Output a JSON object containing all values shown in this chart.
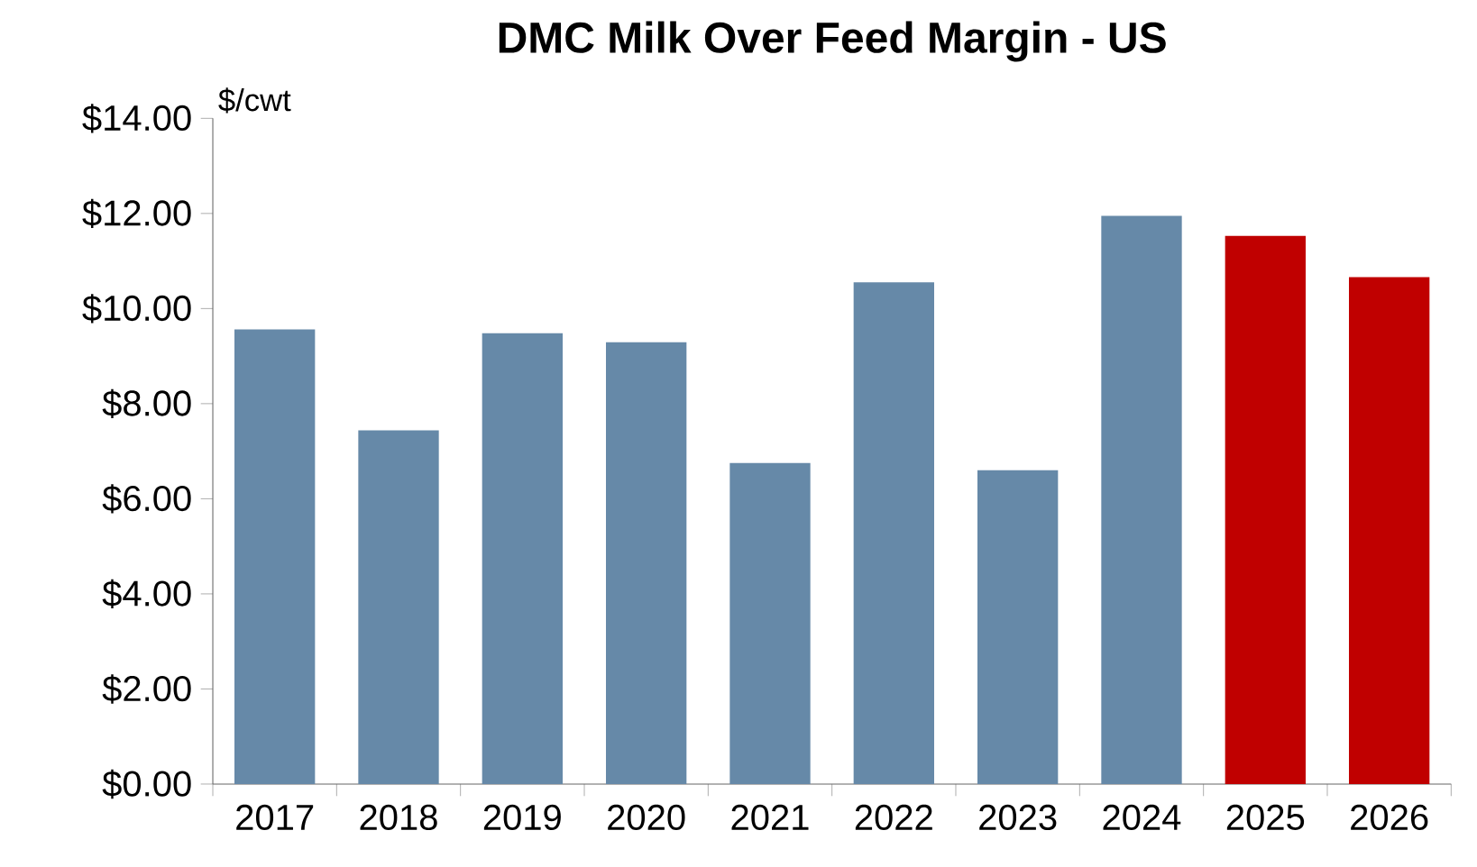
{
  "chart_data": {
    "type": "bar",
    "title": "DMC Milk Over Feed Margin - US",
    "ylabel": "$/cwt",
    "categories": [
      "2017",
      "2018",
      "2019",
      "2020",
      "2021",
      "2022",
      "2023",
      "2024",
      "2025",
      "2026"
    ],
    "values": [
      9.56,
      7.44,
      9.48,
      9.29,
      6.75,
      10.55,
      6.6,
      11.95,
      11.53,
      10.66
    ],
    "colors": [
      "#6689a8",
      "#6689a8",
      "#6689a8",
      "#6689a8",
      "#6689a8",
      "#6689a8",
      "#6689a8",
      "#6689a8",
      "#c00000",
      "#c00000"
    ],
    "ylim": [
      0,
      14
    ],
    "yticks": [
      {
        "value": 0,
        "label": "$0.00"
      },
      {
        "value": 2,
        "label": "$2.00"
      },
      {
        "value": 4,
        "label": "$4.00"
      },
      {
        "value": 6,
        "label": "$6.00"
      },
      {
        "value": 8,
        "label": "$8.00"
      },
      {
        "value": 10,
        "label": "$10.00"
      },
      {
        "value": 12,
        "label": "$12.00"
      },
      {
        "value": 14,
        "label": "$14.00"
      }
    ]
  }
}
